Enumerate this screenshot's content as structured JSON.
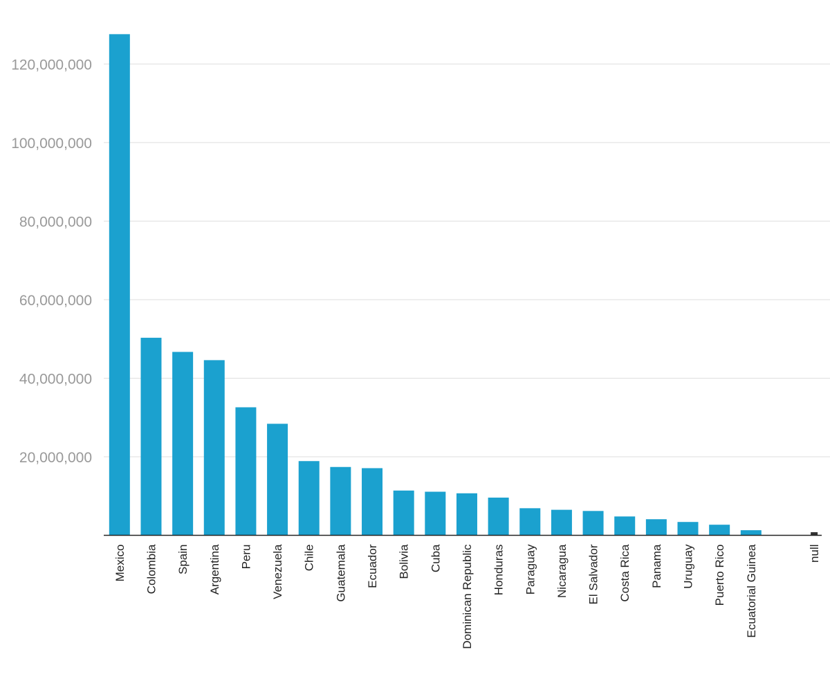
{
  "chart_data": {
    "type": "bar",
    "title": "",
    "xlabel": "",
    "ylabel": "",
    "ylim": [
      0,
      130000000
    ],
    "yticks": [
      20000000,
      40000000,
      60000000,
      80000000,
      100000000,
      120000000
    ],
    "ytick_labels": [
      "20,000,000",
      "40,000,000",
      "60,000,000",
      "80,000,000",
      "100,000,000",
      "120,000,000"
    ],
    "grid": true,
    "bar_color": "#1ba1cf",
    "categories": [
      "Mexico",
      "Colombia",
      "Spain",
      "Argentina",
      "Peru",
      "Venezuela",
      "Chile",
      "Guatemala",
      "Ecuador",
      "Bolivia",
      "Cuba",
      "Dominican Republic",
      "Honduras",
      "Paraguay",
      "Nicaragua",
      "El Salvador",
      "Costa Rica",
      "Panama",
      "Uruguay",
      "Puerto Rico",
      "Ecuatorial Guinea",
      "",
      "null"
    ],
    "values": [
      127600000,
      50300000,
      46700000,
      44600000,
      32600000,
      28400000,
      18900000,
      17400000,
      17100000,
      11400000,
      11100000,
      10700000,
      9600000,
      6900000,
      6500000,
      6200000,
      4800000,
      4100000,
      3400000,
      2700000,
      1300000,
      null,
      800000
    ]
  }
}
